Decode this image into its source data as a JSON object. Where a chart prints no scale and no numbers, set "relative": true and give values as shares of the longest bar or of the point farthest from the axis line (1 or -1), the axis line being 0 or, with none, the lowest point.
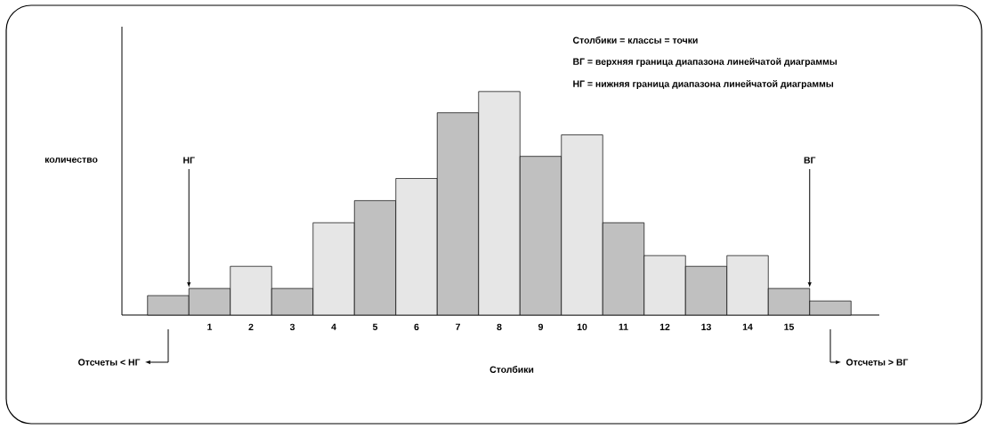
{
  "chart_data": {
    "type": "bar",
    "relative": true,
    "xlabel": "Столбики",
    "ylabel": "количество",
    "categories": [
      null,
      "1",
      "2",
      "3",
      "4",
      "5",
      "6",
      "7",
      "8",
      "9",
      "10",
      "11",
      "12",
      "13",
      "14",
      "15",
      null
    ],
    "values": [
      0.087,
      0.119,
      0.218,
      0.119,
      0.413,
      0.512,
      0.611,
      0.905,
      1,
      0.71,
      0.806,
      0.413,
      0.266,
      0.218,
      0.266,
      0.119,
      0.063
    ],
    "colors": [
      "#c0c0c0",
      "#c0c0c0",
      "#e6e6e6",
      "#c0c0c0",
      "#e6e6e6",
      "#c0c0c0",
      "#e6e6e6",
      "#c0c0c0",
      "#e6e6e6",
      "#c0c0c0",
      "#e6e6e6",
      "#c0c0c0",
      "#e6e6e6",
      "#c0c0c0",
      "#e6e6e6",
      "#c0c0c0",
      "#c0c0c0"
    ],
    "annotations": [
      "Столбики = классы = точки",
      "ВГ = верхняя граница диапазона линейчатой диаграммы",
      "НГ = нижняя граница диапазона линейчатой диаграммы",
      "НГ",
      "ВГ",
      "Отсчеты < НГ",
      "Отсчеты > ВГ"
    ]
  }
}
